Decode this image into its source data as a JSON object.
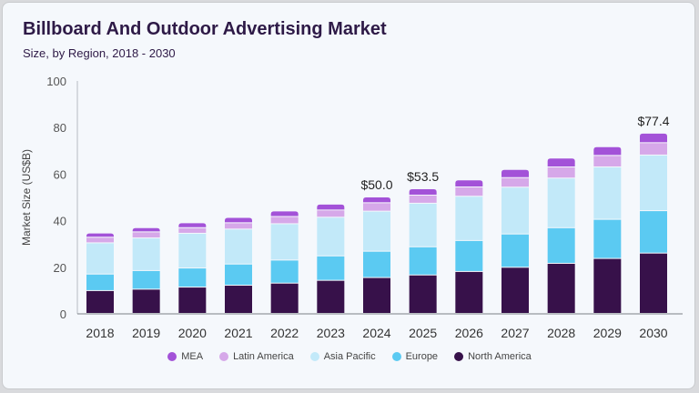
{
  "chart_data": {
    "type": "bar",
    "stacked": true,
    "title": "Billboard And Outdoor Advertising Market",
    "subtitle": "Size, by Region, 2018 - 2030",
    "ylabel": "Market Size (US$B)",
    "xlabel": "",
    "ylim": [
      0,
      100
    ],
    "yticks": [
      0,
      20,
      40,
      60,
      80,
      100
    ],
    "grid": false,
    "legend_position": "bottom",
    "categories": [
      "2018",
      "2019",
      "2020",
      "2021",
      "2022",
      "2023",
      "2024",
      "2025",
      "2026",
      "2027",
      "2028",
      "2029",
      "2030"
    ],
    "series": [
      {
        "name": "North America",
        "color": "#37114a",
        "values": [
          9.8,
          10.4,
          11.3,
          12.1,
          13.0,
          14.2,
          15.4,
          16.5,
          18.0,
          19.8,
          21.5,
          23.6,
          25.9
        ]
      },
      {
        "name": "Europe",
        "color": "#5bcaf2",
        "values": [
          7.1,
          8.0,
          8.2,
          9.1,
          9.9,
          10.5,
          11.3,
          12.1,
          13.3,
          14.3,
          15.3,
          16.8,
          18.2
        ]
      },
      {
        "name": "Asia Pacific",
        "color": "#c2e9f9",
        "values": [
          13.4,
          14.0,
          14.9,
          15.0,
          15.6,
          16.6,
          17.2,
          18.7,
          19.0,
          20.1,
          21.3,
          22.5,
          23.9
        ]
      },
      {
        "name": "Latin America",
        "color": "#d6a8e9",
        "values": [
          2.4,
          2.6,
          2.4,
          2.7,
          3.1,
          3.1,
          3.6,
          3.5,
          4.0,
          4.1,
          4.8,
          4.9,
          5.3
        ]
      },
      {
        "name": "MEA",
        "color": "#a352d8",
        "values": [
          1.8,
          1.8,
          2.1,
          2.3,
          2.4,
          2.5,
          2.5,
          2.7,
          3.0,
          3.5,
          3.8,
          3.8,
          4.1
        ]
      }
    ],
    "annotations": [
      {
        "category": "2024",
        "text": "$50.0"
      },
      {
        "category": "2025",
        "text": "$53.5"
      },
      {
        "category": "2030",
        "text": "$77.4"
      }
    ],
    "legend_order": [
      "MEA",
      "Latin America",
      "Asia Pacific",
      "Europe",
      "North America"
    ]
  }
}
